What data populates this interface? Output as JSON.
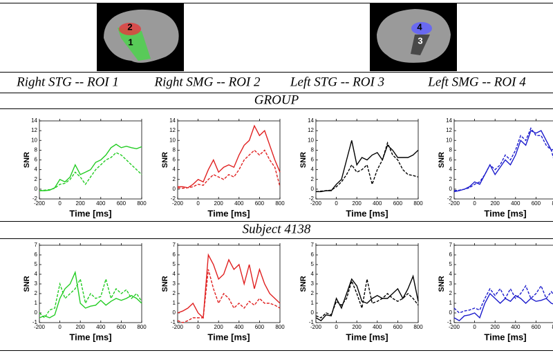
{
  "roi_labels": [
    "Right STG -- ROI 1",
    "Right SMG -- ROI 2",
    "Left STG -- ROI 3",
    "Left SMG -- ROI 4"
  ],
  "sections": [
    "GROUP",
    "Subject 4138"
  ],
  "brain_labels": [
    [
      "2",
      "1"
    ],
    [
      "4",
      "3"
    ]
  ],
  "chart_data": [
    {
      "type": "line",
      "xlabel": "Time [ms]",
      "ylabel": "SNR",
      "xlim": [
        -200,
        800
      ],
      "xticks": [
        -200,
        0,
        200,
        400,
        600,
        800
      ],
      "ylim": [
        -2,
        14
      ],
      "yticks": [
        -2,
        0,
        2,
        4,
        6,
        8,
        10,
        12,
        14
      ],
      "x": [
        -200,
        -150,
        -100,
        -50,
        0,
        50,
        100,
        150,
        200,
        250,
        300,
        350,
        400,
        450,
        500,
        550,
        600,
        650,
        700,
        750,
        800
      ],
      "series": [
        {
          "color": "#22cc22",
          "style": "solid",
          "values": [
            -0.3,
            -0.3,
            -0.2,
            0.3,
            2,
            1.5,
            2.5,
            5,
            3,
            3.5,
            4,
            5.5,
            6,
            7,
            8.5,
            9.2,
            8.5,
            8.8,
            8.5,
            8.3,
            8.7
          ]
        },
        {
          "color": "#22cc22",
          "style": "dashed",
          "values": [
            -0.3,
            -0.2,
            -0.1,
            0.2,
            1,
            1.2,
            2,
            3.5,
            2.5,
            1,
            2.5,
            4,
            5,
            6,
            6.5,
            7.5,
            7,
            6,
            5,
            4,
            3
          ]
        }
      ]
    },
    {
      "type": "line",
      "xlabel": "Time [ms]",
      "ylabel": "SNR",
      "xlim": [
        -200,
        800
      ],
      "xticks": [
        -200,
        0,
        200,
        400,
        600,
        800
      ],
      "ylim": [
        -2,
        14
      ],
      "yticks": [
        -2,
        0,
        2,
        4,
        6,
        8,
        10,
        12,
        14
      ],
      "x": [
        -200,
        -150,
        -100,
        -50,
        0,
        50,
        100,
        150,
        200,
        250,
        300,
        350,
        400,
        450,
        500,
        550,
        600,
        650,
        700,
        750,
        800
      ],
      "series": [
        {
          "color": "#e02020",
          "style": "solid",
          "values": [
            0.5,
            0.5,
            0.3,
            1,
            2,
            1.5,
            4,
            6,
            3.5,
            4.5,
            5,
            4.5,
            7,
            9,
            10,
            13,
            11,
            12,
            9,
            6,
            3.5
          ]
        },
        {
          "color": "#e02020",
          "style": "dashed",
          "values": [
            0.3,
            0.2,
            0.3,
            0.5,
            1,
            0.8,
            2,
            3,
            2.5,
            2,
            3,
            2.5,
            4,
            6,
            7,
            8,
            7,
            8,
            6,
            4.5,
            0.5
          ]
        }
      ]
    },
    {
      "type": "line",
      "xlabel": "Time [ms]",
      "ylabel": "SNR",
      "xlim": [
        -200,
        800
      ],
      "xticks": [
        -200,
        0,
        200,
        400,
        600,
        800
      ],
      "ylim": [
        -2,
        14
      ],
      "yticks": [
        -2,
        0,
        2,
        4,
        6,
        8,
        10,
        12,
        14
      ],
      "x": [
        -200,
        -150,
        -100,
        -50,
        0,
        50,
        100,
        150,
        200,
        250,
        300,
        350,
        400,
        450,
        500,
        550,
        600,
        650,
        700,
        750,
        800
      ],
      "series": [
        {
          "color": "#000000",
          "style": "solid",
          "values": [
            -0.5,
            -0.5,
            -0.3,
            -0.3,
            1,
            2,
            6,
            10,
            5,
            6.5,
            6,
            7,
            7.5,
            6,
            9,
            8,
            6.5,
            6.5,
            6.5,
            7,
            8
          ]
        },
        {
          "color": "#000000",
          "style": "dashed",
          "values": [
            -0.5,
            -0.4,
            -0.3,
            -0.2,
            0.5,
            1.5,
            3,
            5,
            3.5,
            4,
            5,
            1,
            4,
            6,
            9.5,
            7,
            6,
            4,
            3,
            2.8,
            2.5
          ]
        }
      ]
    },
    {
      "type": "line",
      "xlabel": "Time [ms]",
      "ylabel": "SNR",
      "xlim": [
        -200,
        800
      ],
      "xticks": [
        -200,
        0,
        200,
        400,
        600,
        800
      ],
      "ylim": [
        -2,
        14
      ],
      "yticks": [
        -2,
        0,
        2,
        4,
        6,
        8,
        10,
        12,
        14
      ],
      "x": [
        -200,
        -150,
        -100,
        -50,
        0,
        50,
        100,
        150,
        200,
        250,
        300,
        350,
        400,
        450,
        500,
        550,
        600,
        650,
        700,
        750,
        800
      ],
      "series": [
        {
          "color": "#1a1acc",
          "style": "solid",
          "values": [
            -0.5,
            -0.3,
            0,
            0.5,
            1.5,
            1,
            3,
            5,
            3,
            4.5,
            6,
            5,
            7,
            10,
            9,
            12,
            11.5,
            12,
            10,
            8,
            8.5
          ]
        },
        {
          "color": "#1a1acc",
          "style": "dashed",
          "values": [
            -0.3,
            -0.2,
            0,
            0.3,
            1,
            1.5,
            3,
            5,
            4,
            5,
            7,
            6,
            8,
            11,
            10,
            12.5,
            11,
            11,
            9,
            8,
            4
          ]
        }
      ]
    },
    {
      "type": "line",
      "xlabel": "Time [ms]",
      "ylabel": "SNR",
      "xlim": [
        -200,
        800
      ],
      "xticks": [
        -200,
        0,
        200,
        400,
        600,
        800
      ],
      "ylim": [
        -1,
        7
      ],
      "yticks": [
        -1,
        0,
        1,
        2,
        3,
        4,
        5,
        6,
        7
      ],
      "x": [
        -200,
        -150,
        -100,
        -50,
        0,
        50,
        100,
        150,
        200,
        250,
        300,
        350,
        400,
        450,
        500,
        550,
        600,
        650,
        700,
        750,
        800
      ],
      "series": [
        {
          "color": "#22cc22",
          "style": "solid",
          "values": [
            -0.5,
            -0.3,
            -0.5,
            -0.2,
            1.5,
            2.5,
            3,
            4.2,
            1,
            0.5,
            0.7,
            0.8,
            1.3,
            0.8,
            1.2,
            1.5,
            1.3,
            1.5,
            1.8,
            1.5,
            1
          ]
        },
        {
          "color": "#22cc22",
          "style": "dashed",
          "values": [
            0,
            -0.5,
            0.3,
            0.5,
            3,
            1.5,
            2,
            2.5,
            3.5,
            1,
            2,
            1.5,
            1.7,
            3.5,
            1.5,
            2.5,
            2,
            2.4,
            1.5,
            2,
            1.2
          ]
        }
      ]
    },
    {
      "type": "line",
      "xlabel": "Time [ms]",
      "ylabel": "SNR",
      "xlim": [
        -200,
        800
      ],
      "xticks": [
        -200,
        0,
        200,
        400,
        600,
        800
      ],
      "ylim": [
        -1,
        7
      ],
      "yticks": [
        -1,
        0,
        1,
        2,
        3,
        4,
        5,
        6,
        7
      ],
      "x": [
        -200,
        -150,
        -100,
        -50,
        0,
        50,
        100,
        150,
        200,
        250,
        300,
        350,
        400,
        450,
        500,
        550,
        600,
        650,
        700,
        750,
        800
      ],
      "series": [
        {
          "color": "#e02020",
          "style": "solid",
          "values": [
            0,
            0.2,
            0.5,
            1,
            0,
            -0.5,
            6,
            5,
            3.5,
            4,
            5.5,
            4.5,
            5,
            3,
            5,
            2.5,
            4.5,
            3,
            2,
            1.5,
            1
          ]
        },
        {
          "color": "#e02020",
          "style": "dashed",
          "values": [
            -0.8,
            -1,
            -0.8,
            -0.5,
            -0.5,
            -0.5,
            4.5,
            2.5,
            1,
            2,
            1.5,
            0.5,
            1,
            0.5,
            1.2,
            0.8,
            1.5,
            1,
            1,
            0.8,
            0.5
          ]
        }
      ]
    },
    {
      "type": "line",
      "xlabel": "Time [ms]",
      "ylabel": "SNR",
      "xlim": [
        -200,
        800
      ],
      "xticks": [
        -200,
        0,
        200,
        400,
        600,
        800
      ],
      "ylim": [
        -1,
        7
      ],
      "yticks": [
        -1,
        0,
        1,
        2,
        3,
        4,
        5,
        6,
        7
      ],
      "x": [
        -200,
        -150,
        -100,
        -50,
        0,
        50,
        100,
        150,
        200,
        250,
        300,
        350,
        400,
        450,
        500,
        550,
        600,
        650,
        700,
        750,
        800
      ],
      "series": [
        {
          "color": "#000000",
          "style": "solid",
          "values": [
            -0.5,
            -0.8,
            -0.2,
            -0.3,
            1.5,
            0.5,
            2,
            3.5,
            2.8,
            1.2,
            1,
            1.5,
            1.8,
            1.5,
            1.5,
            2,
            2.5,
            1.5,
            2.5,
            3.8,
            1.2
          ]
        },
        {
          "color": "#000000",
          "style": "dashed",
          "values": [
            -0.3,
            -0.5,
            0,
            -0.2,
            1.2,
            0.8,
            1.5,
            3.3,
            2,
            0.5,
            3.5,
            1,
            1.2,
            1.5,
            2,
            1.5,
            1.2,
            1.5,
            2,
            1.5,
            0.8
          ]
        }
      ]
    },
    {
      "type": "line",
      "xlabel": "Time [ms]",
      "ylabel": "SNR",
      "xlim": [
        -200,
        800
      ],
      "xticks": [
        -200,
        0,
        200,
        400,
        600,
        800
      ],
      "ylim": [
        -1,
        7
      ],
      "yticks": [
        -1,
        0,
        1,
        2,
        3,
        4,
        5,
        6,
        7
      ],
      "x": [
        -200,
        -150,
        -100,
        -50,
        0,
        50,
        100,
        150,
        200,
        250,
        300,
        350,
        400,
        450,
        500,
        550,
        600,
        650,
        700,
        750,
        800
      ],
      "series": [
        {
          "color": "#1a1acc",
          "style": "solid",
          "values": [
            -0.5,
            -0.8,
            -0.3,
            -0.2,
            0,
            -0.5,
            1,
            2,
            1.5,
            1,
            1.5,
            1.2,
            1.8,
            1.5,
            1,
            1.5,
            1.2,
            1.3,
            1.5,
            1,
            0.8
          ]
        },
        {
          "color": "#1a1acc",
          "style": "dashed",
          "values": [
            0.5,
            0,
            0.2,
            0.3,
            0.5,
            0.3,
            1.5,
            2.5,
            1.8,
            2.5,
            1.5,
            2.5,
            1.5,
            2,
            2.8,
            1.5,
            2,
            2.8,
            1.5,
            2.2,
            1.5
          ]
        }
      ]
    }
  ]
}
